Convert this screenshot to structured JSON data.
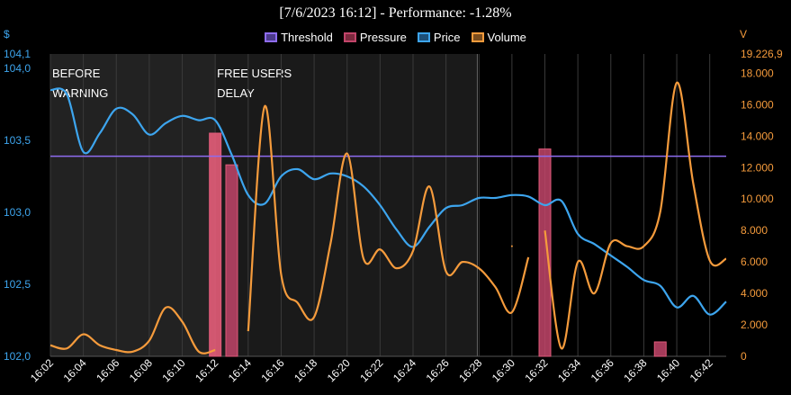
{
  "title": "[7/6/2023 16:12] - Performance: -1.28%",
  "left_axis_label": "$",
  "right_axis_label": "V",
  "legend": [
    {
      "name": "Threshold",
      "color": "#8e6cf0",
      "fill": "#4b3a8a"
    },
    {
      "name": "Pressure",
      "color": "#c2456a",
      "fill": "#7a2a3e"
    },
    {
      "name": "Price",
      "color": "#3da5ee",
      "fill": "#1d4f78"
    },
    {
      "name": "Volume",
      "color": "#f59b3c",
      "fill": "#7a4d1e"
    }
  ],
  "chart_data": {
    "type": "line",
    "x_ticks": [
      "16:02",
      "16:04",
      "16:06",
      "16:08",
      "16:10",
      "16:12",
      "16:14",
      "16:16",
      "16:18",
      "16:20",
      "16:22",
      "16:24",
      "16:26",
      "16:28",
      "16:30",
      "16:32",
      "16:34",
      "16:36",
      "16:38",
      "16:40",
      "16:42"
    ],
    "x_domain": [
      "16:02",
      "16:43"
    ],
    "left_axis": {
      "range": [
        102.0,
        104.1
      ],
      "ticks": [
        102.0,
        102.5,
        103.0,
        103.5,
        104.0
      ],
      "tick_labels": [
        "102,0",
        "102,5",
        "103,0",
        "103,5",
        "104,0"
      ],
      "max_label": "104,1"
    },
    "right_axis": {
      "range": [
        0,
        19226.9
      ],
      "ticks": [
        0,
        2000,
        4000,
        6000,
        8000,
        10000,
        12000,
        14000,
        16000,
        18000
      ],
      "tick_labels": [
        "0",
        "2.000",
        "4.000",
        "6.000",
        "8.000",
        "10.000",
        "12.000",
        "14.000",
        "16.000",
        "18.000"
      ],
      "max_label": "19.226,9"
    },
    "shaded_regions": [
      {
        "from": "16:02",
        "to": "16:12",
        "label_lines": [
          "BEFORE",
          "WARNING"
        ],
        "color": "#222222"
      },
      {
        "from": "16:12",
        "to": "16:27.9",
        "label_lines": [
          "FREE USERS",
          "DELAY"
        ],
        "color": "#1a1a1a"
      }
    ],
    "threshold": {
      "name": "Threshold",
      "value": 103.39,
      "color": "#8e6cf0"
    },
    "series": [
      {
        "name": "Price",
        "axis": "left",
        "color": "#3da5ee",
        "points": [
          [
            "16:02",
            103.85
          ],
          [
            "16:03",
            103.82
          ],
          [
            "16:04",
            103.42
          ],
          [
            "16:05",
            103.55
          ],
          [
            "16:06",
            103.72
          ],
          [
            "16:07",
            103.68
          ],
          [
            "16:08",
            103.54
          ],
          [
            "16:09",
            103.62
          ],
          [
            "16:10",
            103.67
          ],
          [
            "16:11",
            103.64
          ],
          [
            "16:12",
            103.64
          ],
          [
            "16:13",
            103.4
          ],
          [
            "16:14",
            103.12
          ],
          [
            "16:15",
            103.06
          ],
          [
            "16:16",
            103.25
          ],
          [
            "16:17",
            103.3
          ],
          [
            "16:18",
            103.23
          ],
          [
            "16:19",
            103.27
          ],
          [
            "16:20",
            103.25
          ],
          [
            "16:21",
            103.18
          ],
          [
            "16:22",
            103.05
          ],
          [
            "16:23",
            102.88
          ],
          [
            "16:24",
            102.76
          ],
          [
            "16:25",
            102.9
          ],
          [
            "16:26",
            103.03
          ],
          [
            "16:27",
            103.05
          ],
          [
            "16:28",
            103.1
          ],
          [
            "16:29",
            103.1
          ],
          [
            "16:30",
            103.12
          ],
          [
            "16:31",
            103.11
          ],
          [
            "16:32",
            103.05
          ],
          [
            "16:33",
            103.08
          ],
          [
            "16:34",
            102.85
          ],
          [
            "16:35",
            102.78
          ],
          [
            "16:36",
            102.7
          ],
          [
            "16:37",
            102.62
          ],
          [
            "16:38",
            102.53
          ],
          [
            "16:39",
            102.49
          ],
          [
            "16:40",
            102.34
          ],
          [
            "16:41",
            102.42
          ],
          [
            "16:42",
            102.29
          ],
          [
            "16:43",
            102.38
          ]
        ]
      },
      {
        "name": "Volume",
        "axis": "right",
        "color": "#f59b3c",
        "segments": [
          [
            [
              "16:02",
              700
            ],
            [
              "16:03",
              500
            ],
            [
              "16:04",
              1400
            ],
            [
              "16:05",
              700
            ],
            [
              "16:06",
              400
            ],
            [
              "16:07",
              300
            ],
            [
              "16:08",
              1000
            ],
            [
              "16:09",
              3100
            ],
            [
              "16:10",
              2200
            ],
            [
              "16:11",
              300
            ],
            [
              "16:12",
              400
            ]
          ],
          [
            [
              "16:14",
              1600
            ],
            [
              "16:15",
              15900
            ],
            [
              "16:16",
              5200
            ],
            [
              "16:17",
              3400
            ],
            [
              "16:18",
              2500
            ],
            [
              "16:19",
              7200
            ],
            [
              "16:20",
              12900
            ],
            [
              "16:21",
              6200
            ],
            [
              "16:22",
              6800
            ],
            [
              "16:23",
              5600
            ],
            [
              "16:24",
              6700
            ],
            [
              "16:25",
              10800
            ],
            [
              "16:26",
              5400
            ],
            [
              "16:27",
              6000
            ],
            [
              "16:28",
              5600
            ],
            [
              "16:29",
              4400
            ],
            [
              "16:30",
              2800
            ],
            [
              "16:31",
              6300
            ]
          ],
          [
            [
              "16:30",
              7000
            ]
          ],
          [
            [
              "16:32",
              8000
            ],
            [
              "16:33",
              500
            ],
            [
              "16:34",
              6000
            ],
            [
              "16:35",
              4000
            ],
            [
              "16:36",
              7200
            ],
            [
              "16:37",
              7000
            ],
            [
              "16:38",
              7000
            ],
            [
              "16:39",
              9200
            ],
            [
              "16:40",
              17400
            ],
            [
              "16:41",
              11000
            ],
            [
              "16:42",
              6100
            ],
            [
              "16:43",
              6200
            ]
          ]
        ]
      }
    ],
    "bars": {
      "name": "Pressure",
      "axis": "left",
      "items": [
        {
          "x": "16:12",
          "top": 103.55,
          "color": "#f0607e"
        },
        {
          "x": "16:13",
          "top": 103.33,
          "color": "#c2456a"
        },
        {
          "x": "16:32",
          "top": 103.44,
          "color": "#c2456a"
        },
        {
          "x": "16:39",
          "top": 102.1,
          "color": "#c2456a"
        }
      ]
    }
  }
}
